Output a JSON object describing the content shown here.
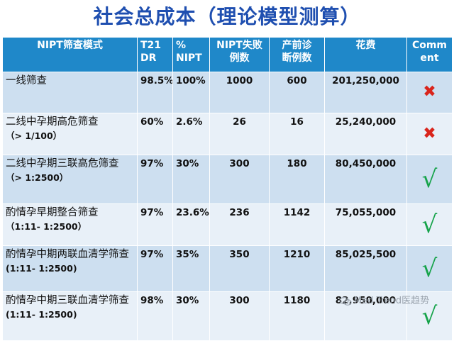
{
  "title": "社会总成本（理论模型测算）",
  "headers": [
    "NIPT筛查模式",
    "T21\nDR",
    "%\nNIPT",
    "NIPT失败\n例数",
    "产前诊\n断例数",
    "花费",
    "Comm\nent"
  ],
  "rows": [
    {
      "mode": "一线筛查",
      "sub": "",
      "dr": "98.5%",
      "nipt": "100%",
      "fail": "1000",
      "diag": "600",
      "cost": "201,250,000",
      "mark": "cross",
      "mark_glyph": "✖"
    },
    {
      "mode": "二线中孕期高危筛查",
      "sub": "（> 1/100）",
      "dr": "60%",
      "nipt": "2.6%",
      "fail": "26",
      "diag": "16",
      "cost": "25,240,000",
      "mark": "cross",
      "mark_glyph": "✖"
    },
    {
      "mode": "二线中孕期三联高危筛查",
      "sub": "（> 1:2500）",
      "dr": "97%",
      "nipt": "30%",
      "fail": "300",
      "diag": "180",
      "cost": "80,450,000",
      "mark": "check",
      "mark_glyph": "√"
    },
    {
      "mode": "酌情孕早期整合筛查",
      "sub": "（1:11- 1:2500）",
      "dr": "97%",
      "nipt": "23.6%",
      "fail": "236",
      "diag": "1142",
      "cost": "75,055,000",
      "mark": "check",
      "mark_glyph": "√"
    },
    {
      "mode": "酌情孕中期两联血清学筛查",
      "sub": "(1:11- 1:2500)",
      "dr": "97%",
      "nipt": "35%",
      "fail": "350",
      "diag": "1210",
      "cost": "85,025,500",
      "mark": "check",
      "mark_glyph": "√"
    },
    {
      "mode": "酌情孕中期三联血清学筛查",
      "sub": "(1:11- 1:2500)",
      "dr": "98%",
      "nipt": "30%",
      "fail": "300",
      "diag": "1180",
      "cost": "82,950,000",
      "mark": "check",
      "mark_glyph": "√"
    }
  ],
  "watermark": "Med Trend医趋势",
  "colors": {
    "title": "#1f4fb0",
    "header_bg": "#1f88c9",
    "row_odd": "#cddff0",
    "row_even": "#e8f0f8",
    "cross": "#d9251c",
    "check": "#16a34a"
  }
}
